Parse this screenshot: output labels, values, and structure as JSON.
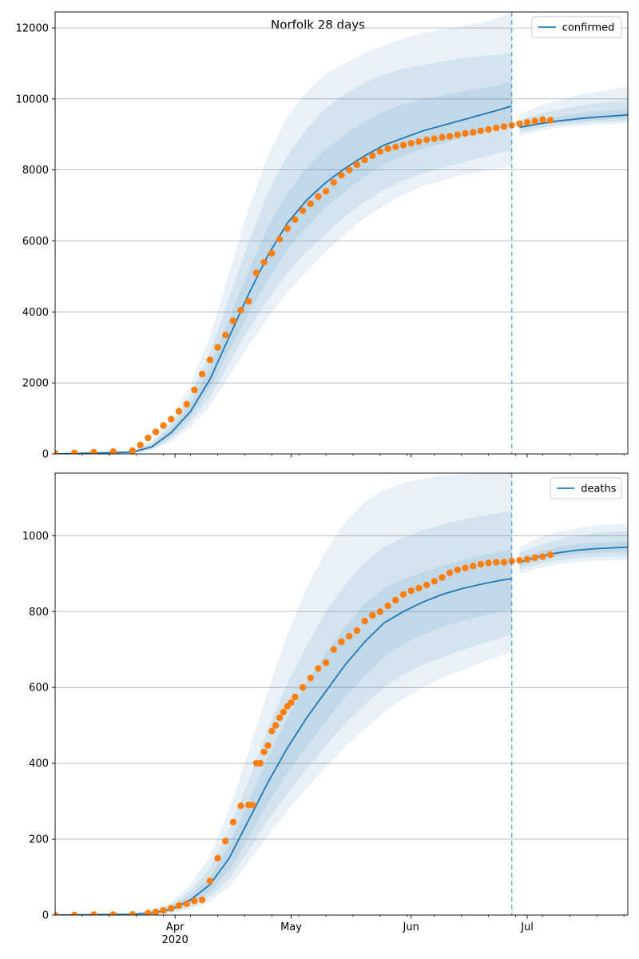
{
  "figure_title": "Norfolk 28 days",
  "x_ticks": [
    {
      "label": "Apr",
      "sublabel": "2020",
      "day": 31
    },
    {
      "label": "May",
      "sublabel": "",
      "day": 61
    },
    {
      "label": "Jun",
      "sublabel": "",
      "day": 92
    },
    {
      "label": "Jul",
      "sublabel": "",
      "day": 122
    }
  ],
  "colors": {
    "model": "#1f77b4",
    "observed": "#ff7f0e",
    "grid": "#b0b0b0",
    "band": "#1f77b4"
  },
  "chart_data": [
    {
      "type": "line",
      "subtitle": "confirmed",
      "legend": {
        "label": "confirmed",
        "placement": "top-right"
      },
      "x_start": "2020-03-01",
      "x_end": "2020-07-27",
      "vline_date": "2020-06-27",
      "ylim": [
        0,
        12450
      ],
      "yticks": [
        0,
        2000,
        4000,
        6000,
        8000,
        10000,
        12000
      ],
      "grid": "horizontal",
      "model_days": [
        0,
        20,
        25,
        30,
        35,
        40,
        45,
        50,
        55,
        60,
        65,
        70,
        75,
        80,
        85,
        90,
        95,
        100,
        105,
        110,
        115,
        118,
        120,
        125,
        130,
        135,
        140,
        148
      ],
      "model": [
        0,
        50,
        200,
        600,
        1200,
        2100,
        3300,
        4500,
        5600,
        6500,
        7150,
        7650,
        8050,
        8400,
        8700,
        8900,
        9100,
        9250,
        9400,
        9550,
        9700,
        9800,
        9200,
        9300,
        9380,
        9440,
        9490,
        9550
      ],
      "band_inner": {
        "lo": [
          0,
          35,
          160,
          500,
          1050,
          1850,
          2900,
          3950,
          4900,
          5750,
          6400,
          6950,
          7400,
          7800,
          8150,
          8400,
          8600,
          8750,
          8900,
          9050,
          9180,
          9250,
          9150,
          9250,
          9320,
          9370,
          9410,
          9450
        ],
        "hi": [
          0,
          65,
          250,
          720,
          1400,
          2450,
          3800,
          5150,
          6400,
          7350,
          8050,
          8600,
          9000,
          9350,
          9650,
          9850,
          10000,
          10100,
          10200,
          10300,
          10400,
          10500,
          9280,
          9400,
          9500,
          9580,
          9650,
          9700
        ]
      },
      "band_mid": {
        "lo": [
          0,
          25,
          130,
          420,
          900,
          1600,
          2550,
          3500,
          4350,
          5100,
          5700,
          6200,
          6700,
          7100,
          7450,
          7700,
          7900,
          8050,
          8200,
          8350,
          8480,
          8550,
          9050,
          9180,
          9260,
          9310,
          9350,
          9380
        ],
        "hi": [
          0,
          80,
          310,
          850,
          1650,
          2850,
          4400,
          5950,
          7350,
          8400,
          9150,
          9750,
          10150,
          10450,
          10700,
          10850,
          10950,
          11050,
          11150,
          11200,
          11250,
          11300,
          9400,
          9580,
          9700,
          9800,
          9880,
          9950
        ]
      },
      "band_outer": {
        "lo": [
          0,
          15,
          100,
          340,
          750,
          1350,
          2200,
          3050,
          3850,
          4550,
          5150,
          5700,
          6200,
          6650,
          7000,
          7300,
          7550,
          7700,
          7850,
          7950,
          8050,
          8100,
          8950,
          9100,
          9190,
          9240,
          9280,
          9310
        ],
        "hi": [
          0,
          100,
          380,
          1000,
          1950,
          3300,
          5100,
          6900,
          8400,
          9500,
          10200,
          10700,
          11000,
          11300,
          11500,
          11700,
          11850,
          11950,
          12050,
          12150,
          12300,
          12450,
          9550,
          9800,
          9950,
          10100,
          10200,
          10350
        ]
      },
      "observed_days": [
        0,
        5,
        10,
        15,
        20,
        22,
        24,
        26,
        28,
        30,
        32,
        34,
        36,
        38,
        40,
        42,
        44,
        46,
        48,
        50,
        52,
        54,
        56,
        58,
        60,
        62,
        64,
        66,
        68,
        70,
        72,
        74,
        76,
        78,
        80,
        82,
        84,
        86,
        88,
        90,
        92,
        94,
        96,
        98,
        100,
        102,
        104,
        106,
        108,
        110,
        112,
        114,
        116,
        118,
        120,
        122,
        124,
        126,
        128
      ],
      "observed": [
        20,
        30,
        45,
        65,
        90,
        250,
        450,
        620,
        800,
        980,
        1200,
        1400,
        1800,
        2250,
        2650,
        3000,
        3350,
        3750,
        4050,
        4300,
        5100,
        5400,
        5650,
        6050,
        6350,
        6600,
        6850,
        7050,
        7250,
        7400,
        7650,
        7850,
        8000,
        8150,
        8280,
        8400,
        8520,
        8600,
        8650,
        8700,
        8750,
        8800,
        8850,
        8880,
        8920,
        8950,
        8990,
        9030,
        9060,
        9100,
        9140,
        9180,
        9220,
        9260,
        9300,
        9340,
        9380,
        9420,
        9400
      ]
    },
    {
      "type": "line",
      "subtitle": "deaths",
      "legend": {
        "label": "deaths",
        "placement": "top-right"
      },
      "x_start": "2020-03-01",
      "x_end": "2020-07-27",
      "vline_date": "2020-06-27",
      "ylim": [
        0,
        1165
      ],
      "yticks": [
        0,
        200,
        400,
        600,
        800,
        1000
      ],
      "grid": "horizontal",
      "model_days": [
        0,
        20,
        25,
        30,
        35,
        40,
        45,
        50,
        55,
        60,
        65,
        70,
        75,
        80,
        85,
        90,
        95,
        100,
        105,
        110,
        115,
        118,
        120,
        125,
        130,
        135,
        140,
        148
      ],
      "model": [
        0,
        2,
        5,
        15,
        40,
        80,
        150,
        250,
        350,
        440,
        520,
        590,
        660,
        720,
        770,
        800,
        825,
        845,
        860,
        872,
        882,
        887,
        930,
        945,
        955,
        962,
        966,
        970
      ],
      "band_inner": {
        "lo": [
          0,
          1,
          3,
          11,
          30,
          62,
          118,
          205,
          295,
          375,
          445,
          510,
          575,
          630,
          680,
          715,
          740,
          760,
          775,
          788,
          800,
          805,
          920,
          935,
          945,
          950,
          955,
          958
        ],
        "hi": [
          0,
          3,
          8,
          20,
          52,
          100,
          185,
          300,
          415,
          520,
          610,
          690,
          760,
          820,
          860,
          885,
          905,
          920,
          935,
          948,
          958,
          965,
          940,
          958,
          970,
          978,
          982,
          985
        ]
      },
      "band_mid": {
        "lo": [
          0,
          1,
          2,
          8,
          22,
          48,
          95,
          170,
          250,
          320,
          385,
          445,
          505,
          555,
          600,
          635,
          660,
          680,
          698,
          715,
          730,
          740,
          910,
          925,
          935,
          940,
          944,
          946
        ],
        "hi": [
          0,
          4,
          11,
          26,
          65,
          125,
          225,
          355,
          490,
          610,
          710,
          800,
          870,
          930,
          970,
          995,
          1015,
          1030,
          1042,
          1052,
          1060,
          1065,
          955,
          975,
          990,
          1000,
          1008,
          1012
        ]
      },
      "band_outer": {
        "lo": [
          0,
          0,
          1,
          5,
          15,
          35,
          75,
          140,
          210,
          275,
          335,
          390,
          445,
          490,
          535,
          570,
          600,
          625,
          645,
          665,
          683,
          695,
          900,
          915,
          925,
          930,
          934,
          936
        ],
        "hi": [
          0,
          5,
          14,
          33,
          80,
          155,
          275,
          430,
          590,
          740,
          860,
          960,
          1035,
          1090,
          1120,
          1140,
          1150,
          1158,
          1162,
          1164,
          1165,
          1165,
          970,
          995,
          1010,
          1020,
          1028,
          1032
        ]
      },
      "observed_days": [
        0,
        5,
        10,
        15,
        20,
        24,
        26,
        28,
        30,
        32,
        34,
        36,
        38,
        40,
        42,
        44,
        46,
        48,
        50,
        51,
        52,
        53,
        54,
        55,
        56,
        57,
        58,
        59,
        60,
        61,
        62,
        64,
        66,
        68,
        70,
        72,
        74,
        76,
        78,
        80,
        82,
        84,
        86,
        88,
        90,
        92,
        94,
        96,
        98,
        100,
        102,
        104,
        106,
        108,
        110,
        112,
        114,
        116,
        118,
        120,
        122,
        124,
        126,
        128
      ],
      "observed": [
        0,
        0,
        1,
        1,
        2,
        5,
        8,
        12,
        18,
        25,
        30,
        37,
        40,
        90,
        150,
        195,
        245,
        288,
        290,
        290,
        400,
        400,
        430,
        447,
        485,
        500,
        520,
        535,
        550,
        560,
        575,
        600,
        625,
        650,
        665,
        700,
        720,
        735,
        750,
        775,
        790,
        800,
        815,
        830,
        845,
        855,
        862,
        870,
        880,
        890,
        902,
        910,
        915,
        920,
        925,
        928,
        930,
        930,
        933,
        935,
        938,
        942,
        945,
        950
      ]
    }
  ]
}
